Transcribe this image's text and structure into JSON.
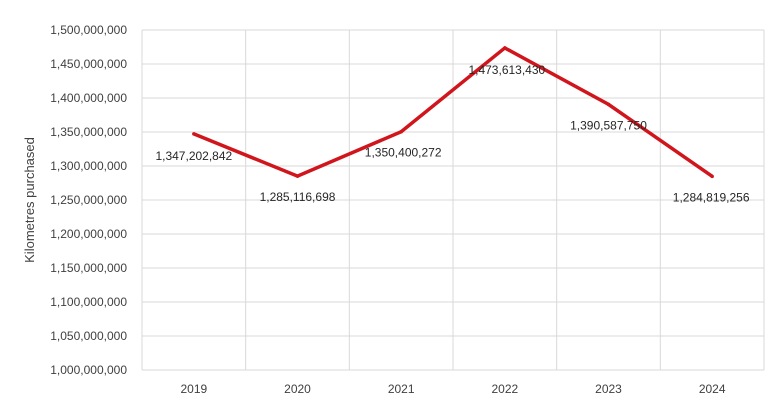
{
  "chart_data": {
    "type": "line",
    "title": "",
    "xlabel": "",
    "ylabel": "Kilometres purchased",
    "categories": [
      "2019",
      "2020",
      "2021",
      "2022",
      "2023",
      "2024"
    ],
    "series": [
      {
        "values": [
          1347202842,
          1285116698,
          1350400272,
          1473613430,
          1390587750,
          1284819256
        ],
        "color": "#d0161c"
      }
    ],
    "data_labels": [
      "1,347,202,842",
      "1,285,116,698",
      "1,350,400,272",
      "1,473,613,430",
      "1,390,587,750",
      "1,284,819,256"
    ],
    "ylim": [
      1000000000,
      1500000000
    ],
    "y_ticks": [
      1000000000,
      1050000000,
      1100000000,
      1150000000,
      1200000000,
      1250000000,
      1300000000,
      1350000000,
      1400000000,
      1450000000,
      1500000000
    ],
    "y_tick_labels": [
      "1,000,000,000",
      "1,050,000,000",
      "1,100,000,000",
      "1,150,000,000",
      "1,200,000,000",
      "1,250,000,000",
      "1,300,000,000",
      "1,350,000,000",
      "1,400,000,000",
      "1,450,000,000",
      "1,500,000,000"
    ],
    "grid": true,
    "legend": "none",
    "colors": {
      "gridline": "#d9d9d9",
      "tick_text": "#404040",
      "label_text": "#262626"
    }
  }
}
